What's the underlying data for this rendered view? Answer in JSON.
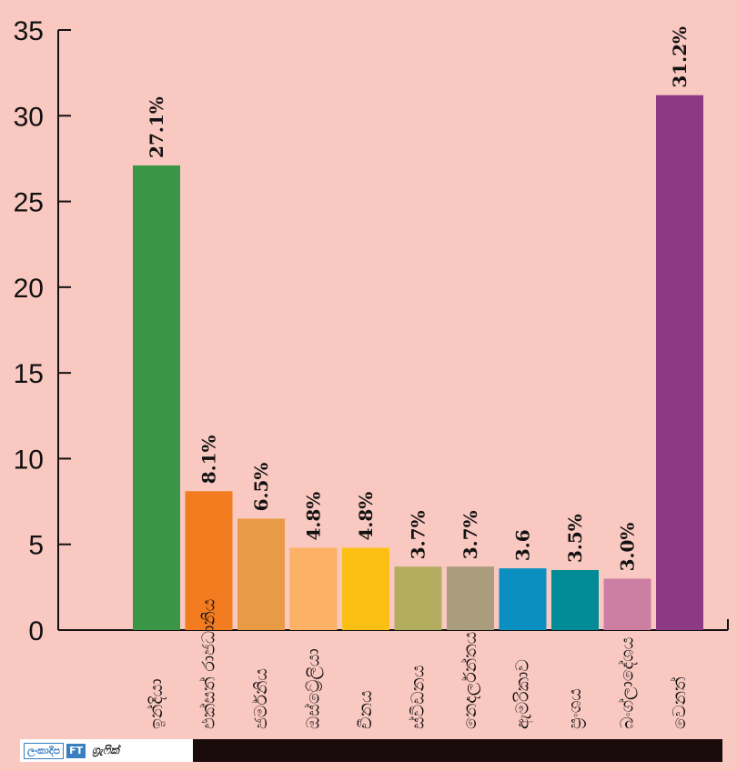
{
  "chart_data": {
    "type": "bar",
    "categories": [
      "ඉන්දියා",
      "එක්සත් රාජධානිය",
      "ජර්මනිය",
      "ඔස්ට්‍රේලියා",
      "චීනය",
      "ස්වීඩනය",
      "නෙදර්ලන්තය",
      "ඇමරිකාව",
      "ප්‍රංශය",
      "බංග්ලාදේශය",
      "වෙනත්"
    ],
    "values": [
      27.1,
      8.1,
      6.5,
      4.8,
      4.8,
      3.7,
      3.7,
      3.6,
      3.5,
      3.0,
      31.2
    ],
    "data_labels": [
      "27.1%",
      "8.1%",
      "6.5%",
      "4.8%",
      "4.8%",
      "3.7%",
      "3.7%",
      "3.6",
      "3.5%",
      "3.0%",
      "31.2%"
    ],
    "colors": [
      "#3a9547",
      "#f47c20",
      "#e89a45",
      "#fcb166",
      "#fcc015",
      "#b3ae5f",
      "#a99d7e",
      "#0b8fc0",
      "#008b96",
      "#cc7fa3",
      "#8d3a84"
    ],
    "yticks": [
      "0",
      "5",
      "10",
      "15",
      "20",
      "25",
      "30",
      "35"
    ],
    "ylim": [
      0,
      35
    ],
    "title": "",
    "xlabel": "",
    "ylabel": "",
    "grid": false,
    "legend": "none"
  },
  "footer": {
    "brand_name": "ලංකාදීප",
    "brand_badge": "FT",
    "brand_text": "ග්‍රැෆික්"
  }
}
